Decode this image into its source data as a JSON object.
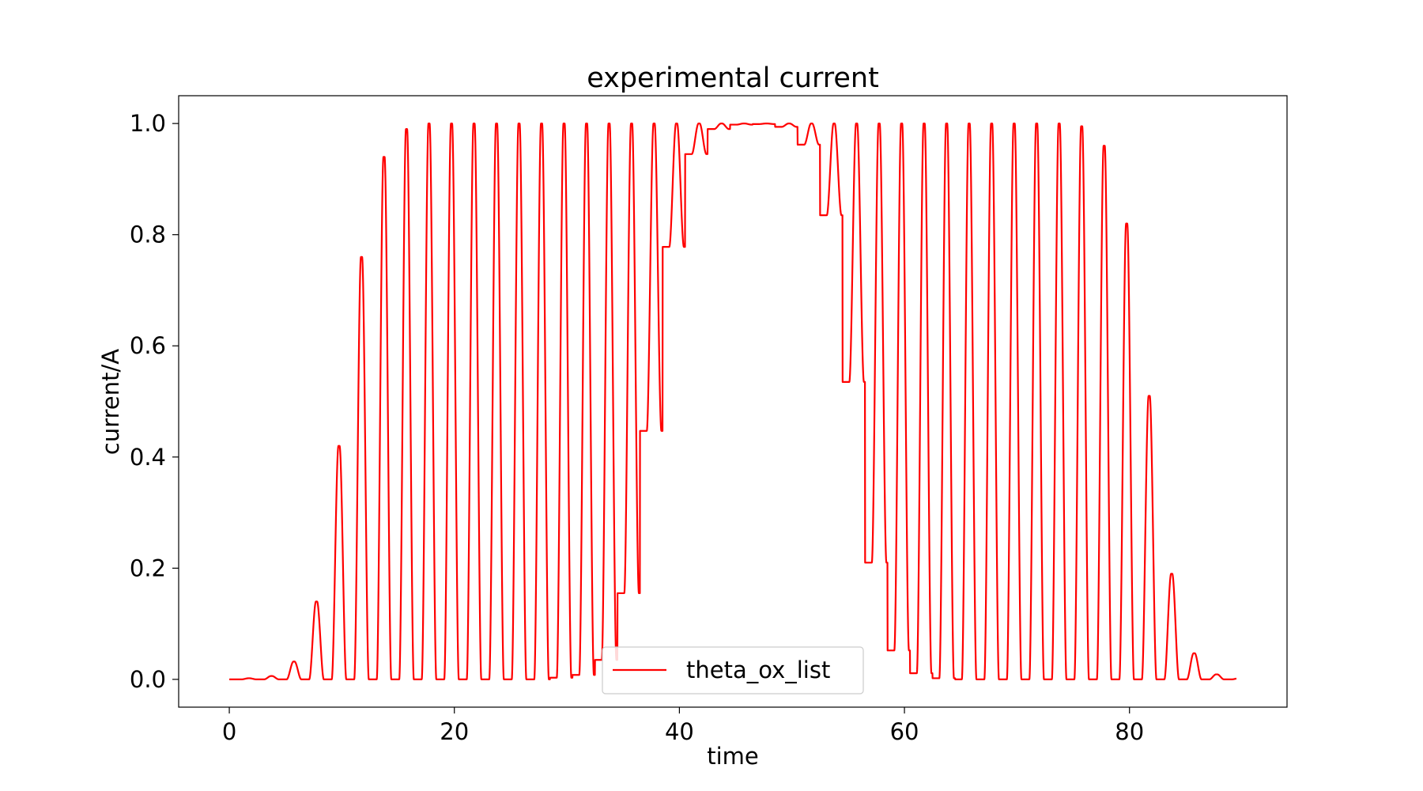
{
  "chart_data": {
    "type": "line",
    "title": "experimental current",
    "xlabel": "time",
    "ylabel": "current/A",
    "xlim": [
      -4.5,
      94.0
    ],
    "ylim": [
      -0.05,
      1.05
    ],
    "xticks": [
      0,
      20,
      40,
      60,
      80
    ],
    "yticks": [
      0.0,
      0.2,
      0.4,
      0.6,
      0.8,
      1.0
    ],
    "ytick_labels": [
      "0.0",
      "0.2",
      "0.4",
      "0.6",
      "0.8",
      "1.0"
    ],
    "grid": false,
    "legend": {
      "position": "lower-center",
      "entries": [
        "theta_ox_list"
      ]
    },
    "series": [
      {
        "name": "theta_ox_list",
        "color": "#ff0000",
        "x_start": 0,
        "x_end": 89.5,
        "period": 2.0,
        "rise_start": 0.3,
        "rise_end": 0.6,
        "fall_start": 0.65,
        "fall_end": 0.95,
        "cycle_start": [
          0.5,
          2.5,
          4.5,
          6.5,
          8.5,
          10.5,
          12.5,
          14.5,
          16.5,
          18.5,
          20.5,
          22.5,
          24.5,
          26.5,
          28.5,
          30.5,
          32.5,
          34.5,
          36.5,
          38.5,
          40.5,
          42.5,
          44.5,
          46.5,
          48.5,
          50.5,
          52.5,
          54.5,
          56.5,
          58.5,
          60.5,
          62.5,
          64.5,
          66.5,
          68.5,
          70.5,
          72.5,
          74.5,
          76.5,
          78.5,
          80.5,
          82.5,
          84.5,
          86.5,
          88.5
        ],
        "peak": [
          0.002,
          0.006,
          0.032,
          0.14,
          0.42,
          0.76,
          0.94,
          0.99,
          1.0,
          1.0,
          1.0,
          1.0,
          1.0,
          1.0,
          1.0,
          1.0,
          1.0,
          1.0,
          1.0,
          1.0,
          1.0,
          1.0,
          1.0,
          1.0,
          1.0,
          1.0,
          1.0,
          1.0,
          1.0,
          1.0,
          1.0,
          1.0,
          1.0,
          1.0,
          1.0,
          1.0,
          1.0,
          0.995,
          0.96,
          0.82,
          0.51,
          0.19,
          0.047,
          0.009,
          0.002
        ],
        "trough": [
          0.0,
          0.0,
          0.0,
          0.0,
          0.0,
          0.0,
          0.0,
          0.0,
          0.0,
          0.0,
          0.0,
          0.0,
          0.0,
          0.0,
          0.003,
          0.008,
          0.035,
          0.155,
          0.447,
          0.778,
          0.945,
          0.99,
          0.998,
          0.999,
          0.994,
          0.962,
          0.835,
          0.535,
          0.21,
          0.052,
          0.011,
          0.002,
          0.0,
          0.0,
          0.0,
          0.0,
          0.0,
          0.0,
          0.0,
          0.0,
          0.0,
          0.0,
          0.0,
          0.0,
          0.0
        ]
      }
    ]
  }
}
